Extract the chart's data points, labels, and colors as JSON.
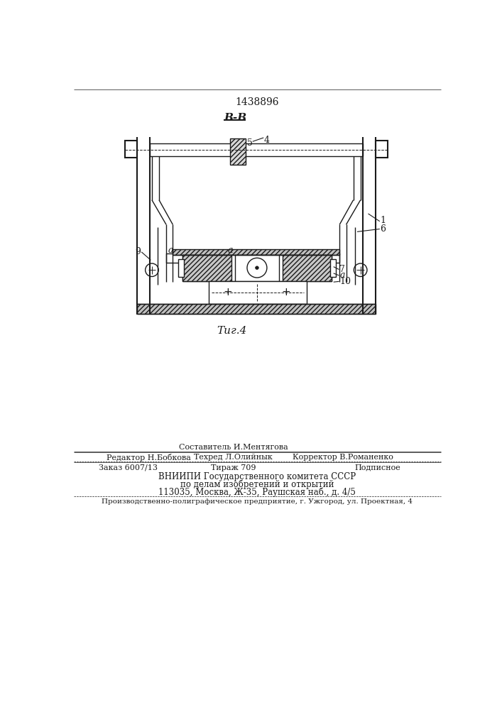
{
  "patent_number": "1438896",
  "fig_label": "Τиг.4",
  "section_label": "В-В",
  "bg_color": "#ffffff",
  "line_color": "#1a1a1a",
  "footer_line1_center_top": "Составитель И.Ментягова",
  "footer_line1_left": "Редактор Н.Бобкова",
  "footer_line1_center": "Техред Л.Олийнык",
  "footer_line1_right": "Корректор В.Романенко",
  "footer_line2_left": "Заказ 6007/13",
  "footer_line2_center": "Тираж 709",
  "footer_line2_right": "Подписное",
  "footer_line3": "ВНИИПИ Государственного комитета СССР",
  "footer_line4": "по делам изобретений и открытий",
  "footer_line5": "113035, Москва, Ж-35, Раушская наб., д. 4/5",
  "footer_last": "Производственно-полиграфическое предприятие, г. Ужгород, ул. Проектная, 4"
}
